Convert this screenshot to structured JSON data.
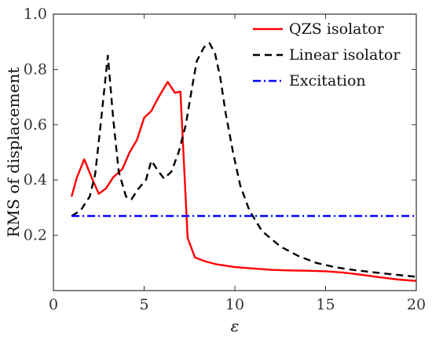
{
  "chart_data": {
    "type": "line",
    "xlabel": "ε",
    "ylabel": "RMS of displacement",
    "xlim": [
      0,
      20
    ],
    "ylim": [
      0,
      1.0
    ],
    "xticks": [
      0,
      5,
      10,
      15,
      20
    ],
    "yticks": [
      0.2,
      0.4,
      0.6,
      0.8,
      1.0
    ],
    "ytick_labels": [
      "0.2",
      "0.4",
      "0.6",
      "0.8",
      "1.0"
    ],
    "grid": false,
    "legend_position": "top-right",
    "series": [
      {
        "name": "QZS isolator",
        "color": "#ff0000",
        "style": "solid",
        "points": [
          [
            1.0,
            0.34
          ],
          [
            1.3,
            0.41
          ],
          [
            1.7,
            0.475
          ],
          [
            2.1,
            0.41
          ],
          [
            2.5,
            0.35
          ],
          [
            2.9,
            0.37
          ],
          [
            3.3,
            0.41
          ],
          [
            3.8,
            0.44
          ],
          [
            4.2,
            0.5
          ],
          [
            4.6,
            0.545
          ],
          [
            5.0,
            0.625
          ],
          [
            5.4,
            0.65
          ],
          [
            5.8,
            0.7
          ],
          [
            6.3,
            0.755
          ],
          [
            6.7,
            0.715
          ],
          [
            7.0,
            0.72
          ],
          [
            7.4,
            0.19
          ],
          [
            7.8,
            0.12
          ],
          [
            8.4,
            0.105
          ],
          [
            9.0,
            0.095
          ],
          [
            10.0,
            0.085
          ],
          [
            11.0,
            0.08
          ],
          [
            12.0,
            0.075
          ],
          [
            13.0,
            0.073
          ],
          [
            14.0,
            0.072
          ],
          [
            15.0,
            0.07
          ],
          [
            16.0,
            0.065
          ],
          [
            17.0,
            0.057
          ],
          [
            18.0,
            0.048
          ],
          [
            19.0,
            0.04
          ],
          [
            20.0,
            0.035
          ]
        ]
      },
      {
        "name": "Linear isolator",
        "color": "#000000",
        "style": "dashed",
        "points": [
          [
            1.0,
            0.27
          ],
          [
            1.5,
            0.29
          ],
          [
            2.0,
            0.34
          ],
          [
            2.3,
            0.42
          ],
          [
            2.6,
            0.6
          ],
          [
            3.0,
            0.85
          ],
          [
            3.3,
            0.62
          ],
          [
            3.6,
            0.43
          ],
          [
            4.0,
            0.34
          ],
          [
            4.3,
            0.33
          ],
          [
            4.7,
            0.37
          ],
          [
            5.1,
            0.4
          ],
          [
            5.4,
            0.47
          ],
          [
            5.8,
            0.43
          ],
          [
            6.1,
            0.405
          ],
          [
            6.5,
            0.43
          ],
          [
            6.9,
            0.5
          ],
          [
            7.3,
            0.6
          ],
          [
            7.6,
            0.72
          ],
          [
            7.9,
            0.83
          ],
          [
            8.3,
            0.88
          ],
          [
            8.6,
            0.895
          ],
          [
            8.9,
            0.86
          ],
          [
            9.2,
            0.77
          ],
          [
            9.5,
            0.64
          ],
          [
            9.9,
            0.5
          ],
          [
            10.3,
            0.38
          ],
          [
            10.8,
            0.29
          ],
          [
            11.5,
            0.215
          ],
          [
            12.5,
            0.16
          ],
          [
            13.5,
            0.125
          ],
          [
            14.5,
            0.1
          ],
          [
            15.5,
            0.085
          ],
          [
            16.5,
            0.075
          ],
          [
            17.5,
            0.067
          ],
          [
            18.5,
            0.06
          ],
          [
            19.5,
            0.053
          ],
          [
            20.0,
            0.05
          ]
        ]
      },
      {
        "name": "Excitation",
        "color": "#0000ff",
        "style": "dashdot",
        "points": [
          [
            1.0,
            0.27
          ],
          [
            20.0,
            0.27
          ]
        ]
      }
    ]
  }
}
